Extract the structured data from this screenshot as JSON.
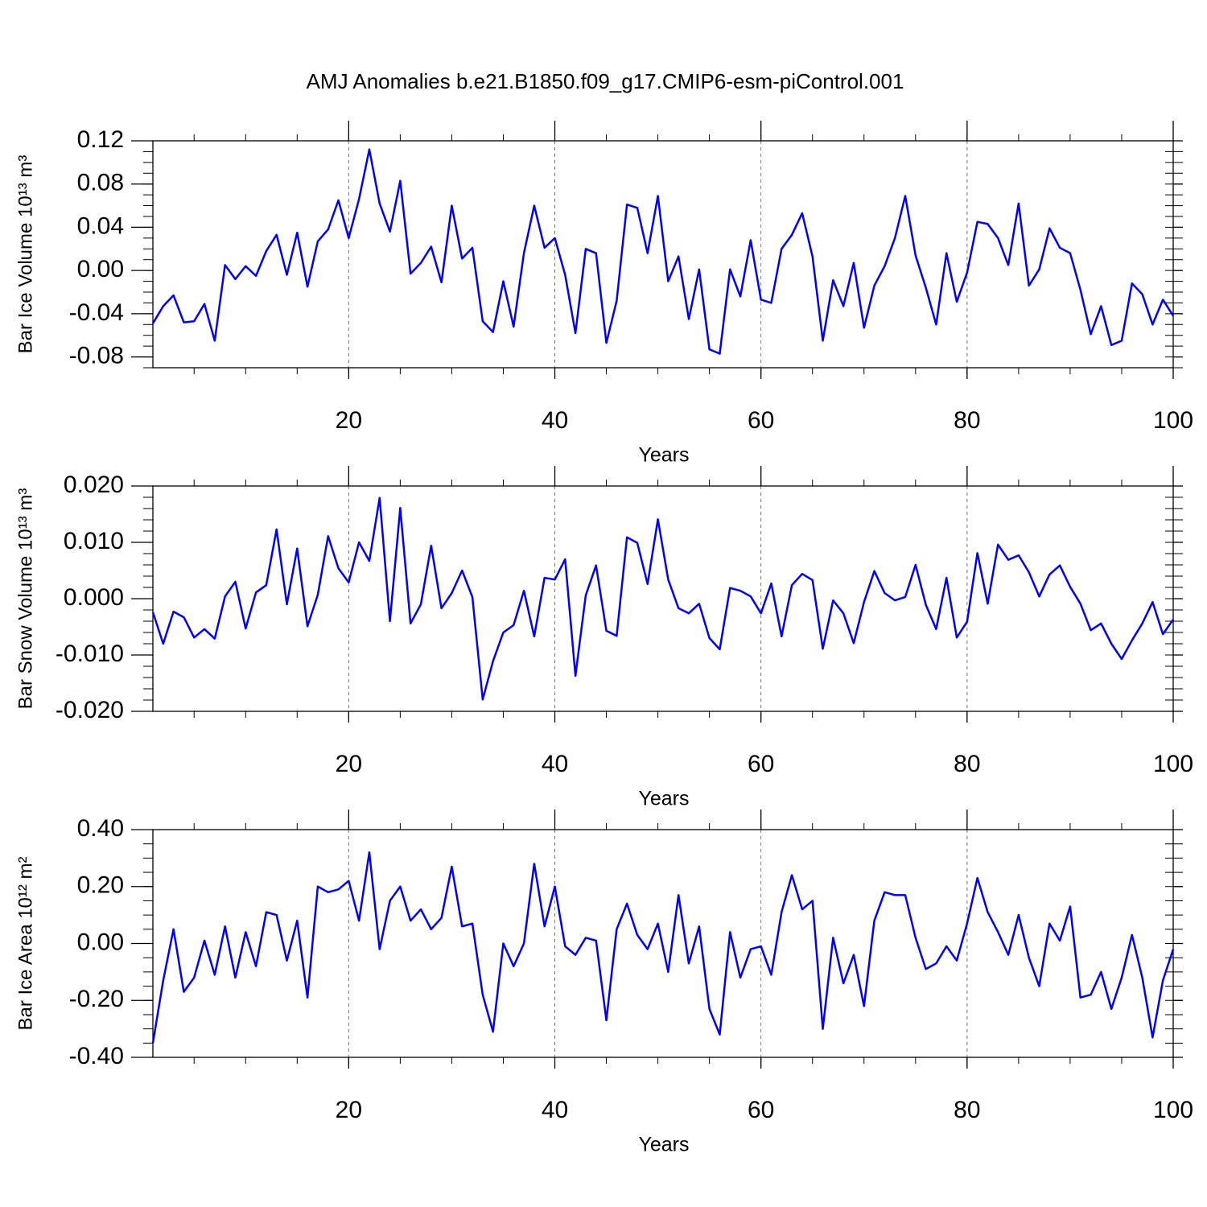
{
  "title": "AMJ Anomalies b.e21.B1850.f09_g17.CMIP6-esm-piControl.001",
  "chart_data": [
    {
      "type": "line",
      "xlabel": "Years",
      "ylabel": "Bar Ice Volume 10¹³ m³",
      "color": "#0000ff",
      "xgrid": true,
      "xlim": [
        1,
        100
      ],
      "xticks": [
        20,
        40,
        60,
        80,
        100
      ],
      "ylim": [
        -0.09,
        0.12
      ],
      "yticks": [
        {
          "value": -0.08,
          "label": "-0.08"
        },
        {
          "value": -0.04,
          "label": "-0.04"
        },
        {
          "value": 0,
          "label": "0.00"
        },
        0.04,
        0.08,
        0.12
      ],
      "x": [
        1,
        2,
        3,
        4,
        5,
        6,
        7,
        8,
        9,
        10,
        11,
        12,
        13,
        14,
        15,
        16,
        17,
        18,
        19,
        20,
        21,
        22,
        23,
        24,
        25,
        26,
        27,
        28,
        29,
        30,
        31,
        32,
        33,
        34,
        35,
        36,
        37,
        38,
        39,
        40,
        41,
        42,
        43,
        44,
        45,
        46,
        47,
        48,
        49,
        50,
        51,
        52,
        53,
        54,
        55,
        56,
        57,
        58,
        59,
        60,
        61,
        62,
        63,
        64,
        65,
        66,
        67,
        68,
        69,
        70,
        71,
        72,
        73,
        74,
        75,
        76,
        77,
        78,
        79,
        80,
        81,
        82,
        83,
        84,
        85,
        86,
        87,
        88,
        89,
        90,
        91,
        92,
        93,
        94,
        95,
        96,
        97,
        98,
        99,
        100
      ],
      "values": [
        -0.049,
        -0.033,
        -0.023,
        -0.048,
        -0.047,
        -0.031,
        -0.065,
        0.005,
        -0.008,
        0.004,
        -0.005,
        0.018,
        0.033,
        -0.004,
        0.035,
        -0.015,
        0.027,
        0.038,
        0.065,
        0.03,
        0.066,
        0.112,
        0.062,
        0.036,
        0.083,
        -0.003,
        0.007,
        0.022,
        -0.011,
        0.06,
        0.011,
        0.021,
        -0.047,
        -0.057,
        -0.01,
        -0.052,
        0.016,
        0.06,
        0.021,
        0.03,
        -0.004,
        -0.058,
        0.02,
        0.016,
        -0.067,
        -0.028,
        0.061,
        0.058,
        0.016,
        0.069,
        -0.01,
        0.013,
        -0.045,
        0.001,
        -0.073,
        -0.077,
        0.001,
        -0.024,
        0.028,
        -0.027,
        -0.03,
        0.02,
        0.033,
        0.053,
        0.013,
        -0.065,
        -0.009,
        -0.033,
        0.007,
        -0.053,
        -0.014,
        0.004,
        0.03,
        0.069,
        0.014,
        -0.016,
        -0.05,
        0.016,
        -0.029,
        -0.002,
        0.045,
        0.043,
        0.03,
        0.005,
        0.062,
        -0.014,
        0.001,
        0.039,
        0.021,
        0.016,
        -0.018,
        -0.059,
        -0.033,
        -0.069,
        -0.065,
        -0.012,
        -0.022,
        -0.05,
        -0.027,
        -0.042
      ]
    },
    {
      "type": "line",
      "xlabel": "Years",
      "ylabel": "Bar Snow Volume 10¹³ m³",
      "color": "#0000ff",
      "xgrid": true,
      "xlim": [
        1,
        100
      ],
      "xticks": [
        20,
        40,
        60,
        80,
        100
      ],
      "ylim": [
        -0.02,
        0.02
      ],
      "yticks": [
        {
          "value": -0.02,
          "label": "-0.020"
        },
        {
          "value": -0.01,
          "label": "-0.010"
        },
        {
          "value": 0,
          "label": "0.000"
        },
        {
          "value": 0.01,
          "label": "0.010"
        },
        {
          "value": 0.02,
          "label": "0.020"
        }
      ],
      "x": [
        1,
        2,
        3,
        4,
        5,
        6,
        7,
        8,
        9,
        10,
        11,
        12,
        13,
        14,
        15,
        16,
        17,
        18,
        19,
        20,
        21,
        22,
        23,
        24,
        25,
        26,
        27,
        28,
        29,
        30,
        31,
        32,
        33,
        34,
        35,
        36,
        37,
        38,
        39,
        40,
        41,
        42,
        43,
        44,
        45,
        46,
        47,
        48,
        49,
        50,
        51,
        52,
        53,
        54,
        55,
        56,
        57,
        58,
        59,
        60,
        61,
        62,
        63,
        64,
        65,
        66,
        67,
        68,
        69,
        70,
        71,
        72,
        73,
        74,
        75,
        76,
        77,
        78,
        79,
        80,
        81,
        82,
        83,
        84,
        85,
        86,
        87,
        88,
        89,
        90,
        91,
        92,
        93,
        94,
        95,
        96,
        97,
        98,
        99,
        100
      ],
      "values": [
        -0.0024,
        -0.008,
        -0.0023,
        -0.0033,
        -0.0069,
        -0.0054,
        -0.0071,
        0.0004,
        0.003,
        -0.0053,
        0.0011,
        0.0024,
        0.0123,
        -0.001,
        0.0089,
        -0.0049,
        0.0007,
        0.0111,
        0.0054,
        0.0029,
        0.01,
        0.0067,
        0.0179,
        -0.004,
        0.0161,
        -0.0044,
        -0.001,
        0.0094,
        -0.0017,
        0.001,
        0.005,
        0.0003,
        -0.0179,
        -0.0111,
        -0.006,
        -0.0047,
        0.0014,
        -0.0067,
        0.0037,
        0.0034,
        0.007,
        -0.0137,
        0.0006,
        0.0059,
        -0.0057,
        -0.0066,
        0.0109,
        0.0099,
        0.0026,
        0.0141,
        0.0034,
        -0.0017,
        -0.0026,
        -0.0009,
        -0.007,
        -0.009,
        0.0019,
        0.0014,
        0.0004,
        -0.0026,
        0.0027,
        -0.0067,
        0.0024,
        0.0044,
        0.0033,
        -0.0089,
        -0.0003,
        -0.0026,
        -0.0079,
        -0.0006,
        0.0049,
        0.001,
        -0.0003,
        0.0003,
        0.006,
        -0.0011,
        -0.0054,
        0.0037,
        -0.0069,
        -0.0041,
        0.0081,
        -0.0009,
        0.0096,
        0.0069,
        0.0077,
        0.0047,
        0.0004,
        0.0043,
        0.0059,
        0.0021,
        -0.0009,
        -0.0056,
        -0.0044,
        -0.008,
        -0.0107,
        -0.0074,
        -0.0044,
        -0.0006,
        -0.0063,
        -0.0037
      ]
    },
    {
      "type": "line",
      "xlabel": "Years",
      "ylabel": "Bar Ice Area 10¹² m²",
      "color": "#0000ff",
      "xgrid": true,
      "xlim": [
        1,
        100
      ],
      "xticks": [
        20,
        40,
        60,
        80,
        100
      ],
      "ylim": [
        -0.4,
        0.4
      ],
      "yticks": [
        {
          "value": -0.4,
          "label": "-0.40"
        },
        {
          "value": -0.2,
          "label": "-0.20"
        },
        {
          "value": 0,
          "label": "0.00"
        },
        {
          "value": 0.2,
          "label": "0.20"
        },
        {
          "value": 0.4,
          "label": "0.40"
        }
      ],
      "x": [
        1,
        2,
        3,
        4,
        5,
        6,
        7,
        8,
        9,
        10,
        11,
        12,
        13,
        14,
        15,
        16,
        17,
        18,
        19,
        20,
        21,
        22,
        23,
        24,
        25,
        26,
        27,
        28,
        29,
        30,
        31,
        32,
        33,
        34,
        35,
        36,
        37,
        38,
        39,
        40,
        41,
        42,
        43,
        44,
        45,
        46,
        47,
        48,
        49,
        50,
        51,
        52,
        53,
        54,
        55,
        56,
        57,
        58,
        59,
        60,
        61,
        62,
        63,
        64,
        65,
        66,
        67,
        68,
        69,
        70,
        71,
        72,
        73,
        74,
        75,
        76,
        77,
        78,
        79,
        80,
        81,
        82,
        83,
        84,
        85,
        86,
        87,
        88,
        89,
        90,
        91,
        92,
        93,
        94,
        95,
        96,
        97,
        98,
        99,
        100
      ],
      "values": [
        -0.35,
        -0.13,
        0.05,
        -0.17,
        -0.12,
        0.01,
        -0.11,
        0.06,
        -0.12,
        0.04,
        -0.08,
        0.11,
        0.1,
        -0.06,
        0.08,
        -0.19,
        0.2,
        0.18,
        0.19,
        0.22,
        0.08,
        0.32,
        -0.02,
        0.15,
        0.2,
        0.08,
        0.12,
        0.05,
        0.09,
        0.27,
        0.06,
        0.07,
        -0.18,
        -0.31,
        0.0,
        -0.08,
        0.0,
        0.28,
        0.06,
        0.2,
        -0.01,
        -0.04,
        0.02,
        0.01,
        -0.27,
        0.05,
        0.14,
        0.03,
        -0.02,
        0.07,
        -0.1,
        0.17,
        -0.07,
        0.06,
        -0.23,
        -0.32,
        0.04,
        -0.12,
        -0.02,
        -0.01,
        -0.11,
        0.11,
        0.24,
        0.12,
        0.15,
        -0.3,
        0.02,
        -0.14,
        -0.04,
        -0.22,
        0.08,
        0.18,
        0.17,
        0.17,
        0.02,
        -0.09,
        -0.07,
        -0.01,
        -0.06,
        0.07,
        0.23,
        0.11,
        0.04,
        -0.04,
        0.1,
        -0.05,
        -0.15,
        0.07,
        0.01,
        0.13,
        -0.19,
        -0.18,
        -0.1,
        -0.23,
        -0.12,
        0.03,
        -0.12,
        -0.33,
        -0.13,
        -0.02
      ]
    }
  ]
}
